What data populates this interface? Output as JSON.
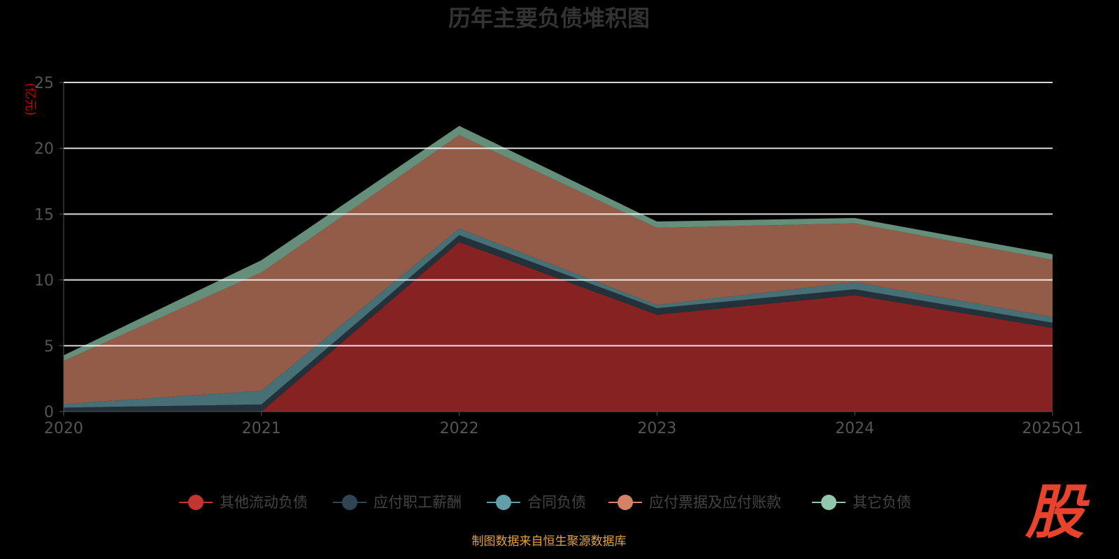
{
  "chart_data": {
    "type": "area",
    "stacked": true,
    "title": "历年主要负债堆积图",
    "ylabel": "(亿元)",
    "xlabel": "",
    "ylim": [
      0,
      25
    ],
    "yticks": [
      "0",
      "5",
      "10",
      "15",
      "20",
      "25"
    ],
    "ytick_values": [
      0,
      5,
      10,
      15,
      20,
      25
    ],
    "categories": [
      "2020",
      "2021",
      "2022",
      "2023",
      "2024",
      "2025Q1"
    ],
    "grid": true,
    "legend_position": "bottom",
    "series": [
      {
        "name": "其他流动负债",
        "values": [
          0,
          0,
          12.88,
          7.36,
          8.84,
          6.35
        ],
        "color": "#c23531",
        "fill": "#862222"
      },
      {
        "name": "应付职工薪酬",
        "values": [
          0.3,
          0.54,
          0.52,
          0.49,
          0.45,
          0.4
        ],
        "color": "#2f4554",
        "fill": "#22313a"
      },
      {
        "name": "合同负债",
        "values": [
          0.27,
          1.04,
          0.5,
          0.25,
          0.54,
          0.44
        ],
        "color": "#61a0a8",
        "fill": "#467075"
      },
      {
        "name": "应付票据及应付账款",
        "values": [
          3.27,
          8.98,
          7.1,
          5.86,
          4.47,
          4.34
        ],
        "color": "#d48265",
        "fill": "#935c48"
      },
      {
        "name": "其它负债",
        "values": [
          0.43,
          0.94,
          0.7,
          0.48,
          0.4,
          0.42
        ],
        "color": "#91c7ae",
        "fill": "#658f7a"
      }
    ]
  },
  "footer": "制图数据来自恒生聚源数据库",
  "logo_text": "股",
  "colors": {
    "title": "#333333",
    "ylabel": "#cc0000",
    "footer": "#e6a23c",
    "logo": "#e8432c"
  }
}
